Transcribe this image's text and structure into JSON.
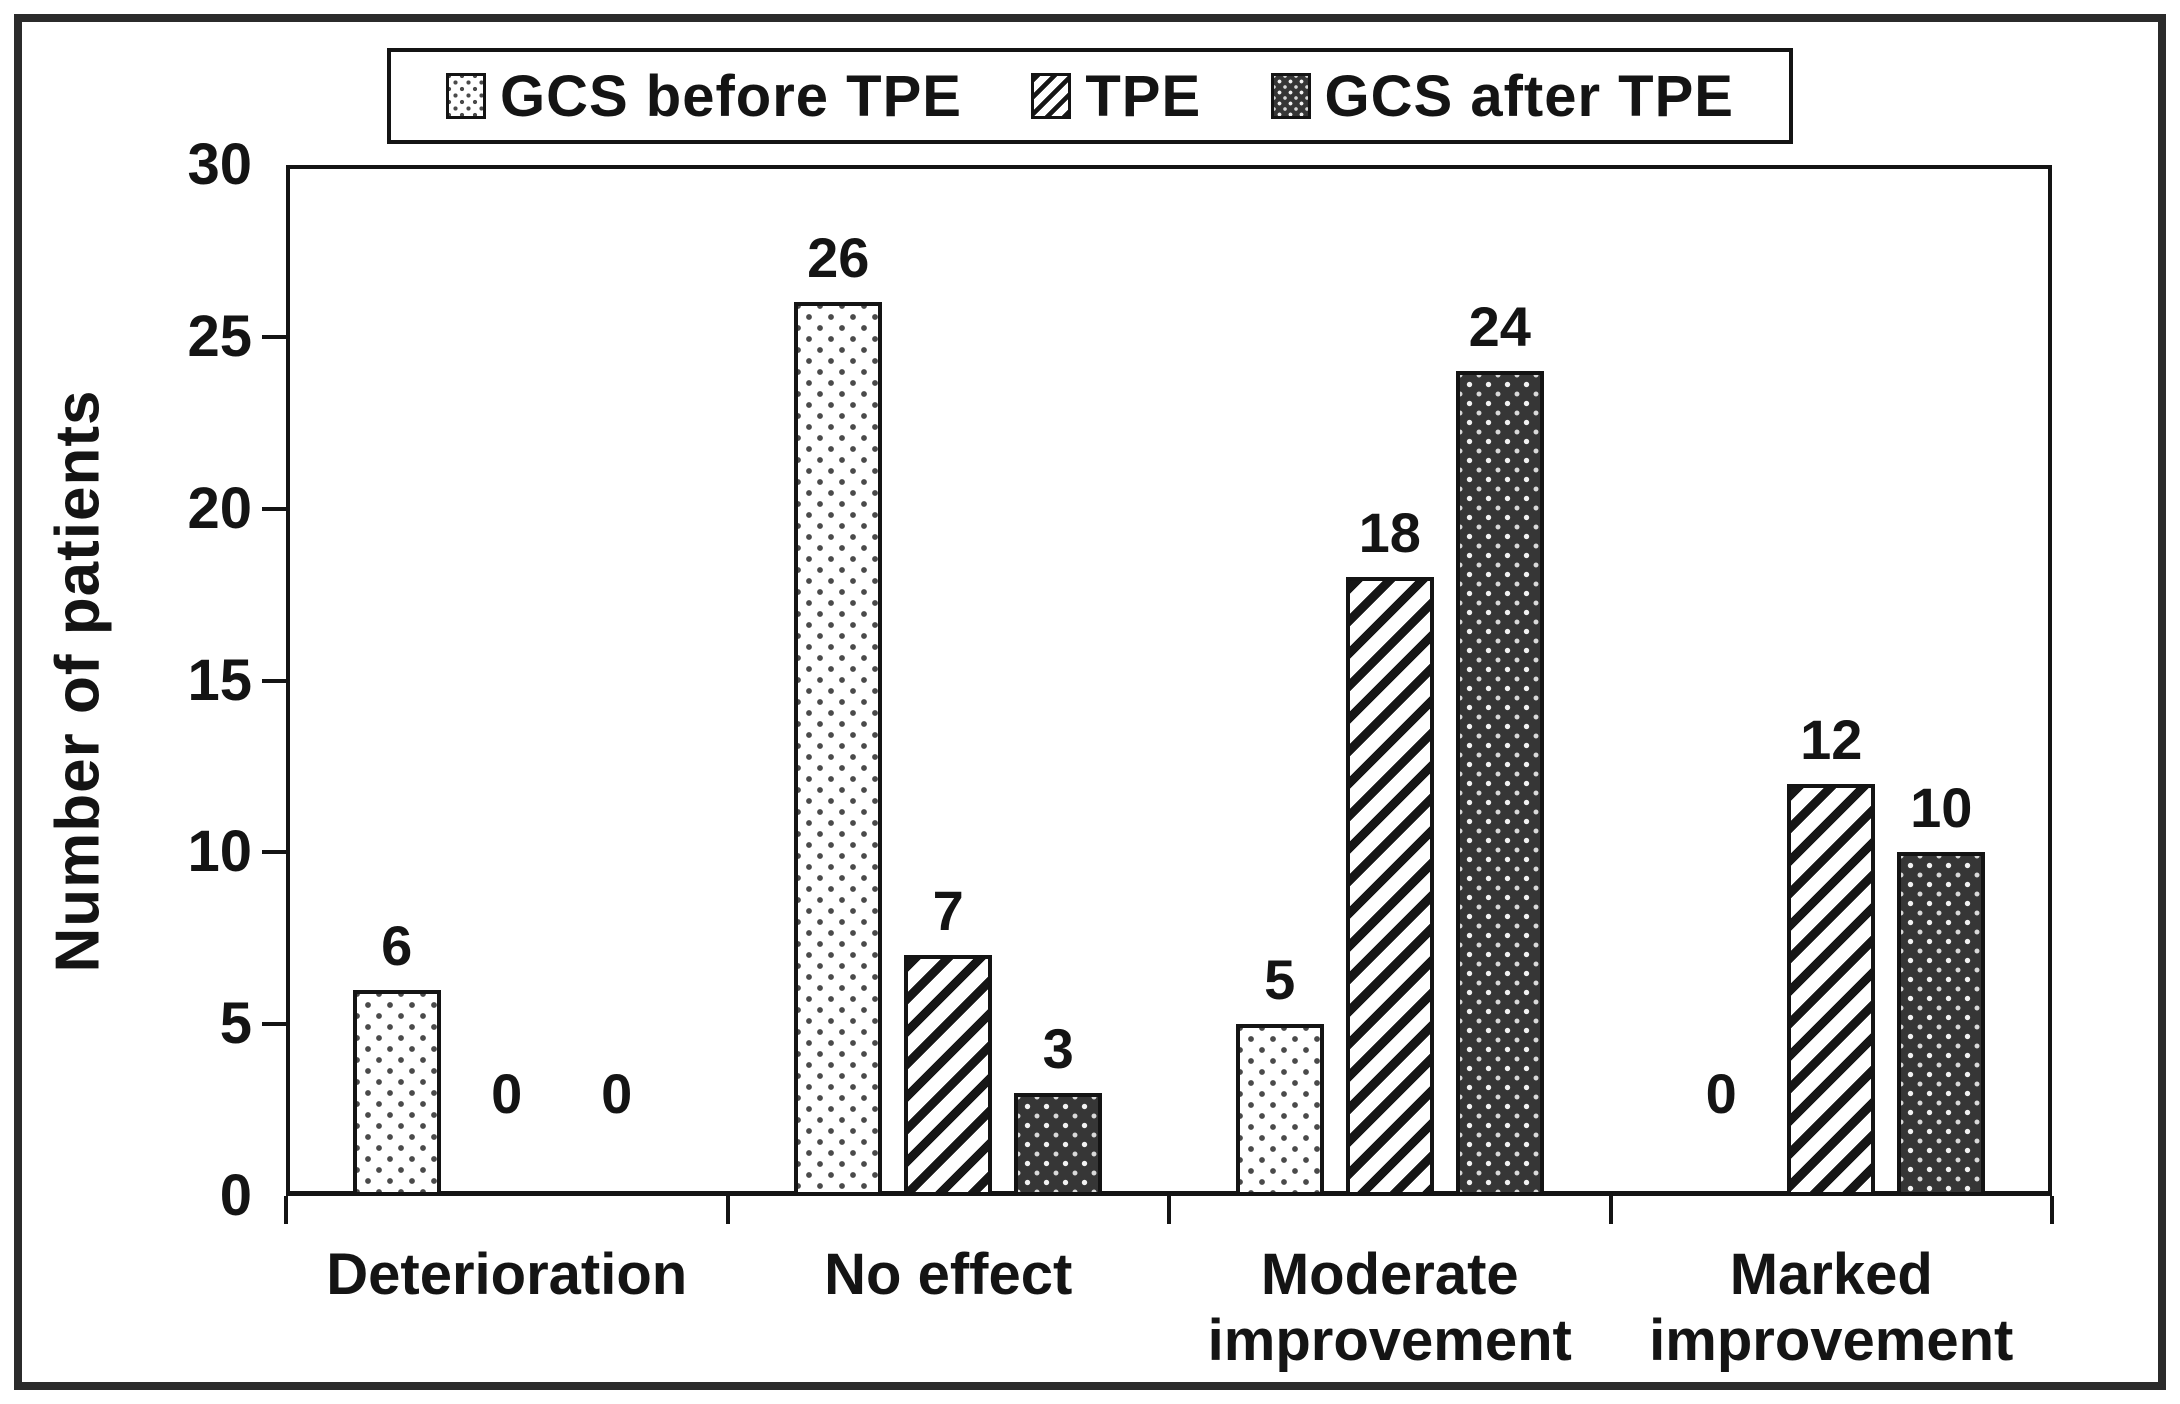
{
  "figure": {
    "y_axis_title": "Number of patients",
    "background_color": "#ffffff",
    "border_color": "#2b2b2b",
    "text_color": "#141414"
  },
  "legend": {
    "items": [
      {
        "label": "GCS before TPE",
        "pattern": "dots-light"
      },
      {
        "label": "TPE",
        "pattern": "hatch"
      },
      {
        "label": "GCS after TPE",
        "pattern": "dots-dark"
      }
    ]
  },
  "chart_data": {
    "type": "bar",
    "title": "",
    "xlabel": "",
    "ylabel": "Number of patients",
    "ylim": [
      0,
      30
    ],
    "yticks": [
      0,
      5,
      10,
      15,
      20,
      25,
      30
    ],
    "grid": false,
    "legend_position": "top-center",
    "bar_value_labels_shown": true,
    "categories": [
      "Deterioration",
      "No effect",
      "Moderate\nimprovement",
      "Marked\nimprovement"
    ],
    "series": [
      {
        "name": "GCS before TPE",
        "pattern": "dots-light",
        "values": [
          6,
          26,
          5,
          0
        ]
      },
      {
        "name": "TPE",
        "pattern": "hatch",
        "values": [
          0,
          7,
          18,
          12
        ]
      },
      {
        "name": "GCS after TPE",
        "pattern": "dots-dark",
        "values": [
          0,
          3,
          24,
          10
        ]
      }
    ]
  }
}
